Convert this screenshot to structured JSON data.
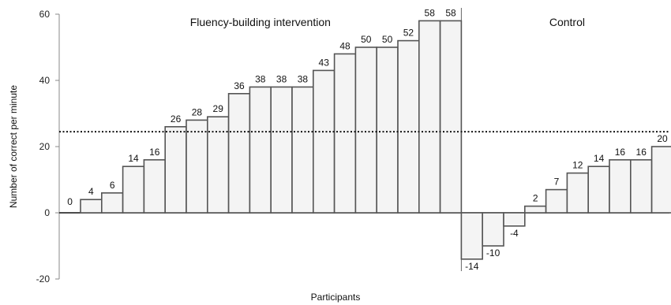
{
  "chart_data": {
    "type": "bar",
    "ylabel": "Number of correct per minute",
    "xlabel": "Participants",
    "ylim": [
      -20,
      60
    ],
    "yticks": [
      -20,
      0,
      20,
      40,
      60
    ],
    "reference_line": 24.5,
    "grid": false,
    "series": [
      {
        "name": "Fluency-building intervention",
        "values": [
          0,
          4,
          6,
          14,
          16,
          26,
          28,
          29,
          36,
          38,
          38,
          38,
          43,
          48,
          50,
          50,
          52,
          58,
          58
        ]
      },
      {
        "name": "Control",
        "values": [
          -14,
          -10,
          -4,
          2,
          7,
          12,
          14,
          16,
          16,
          20
        ]
      }
    ]
  }
}
